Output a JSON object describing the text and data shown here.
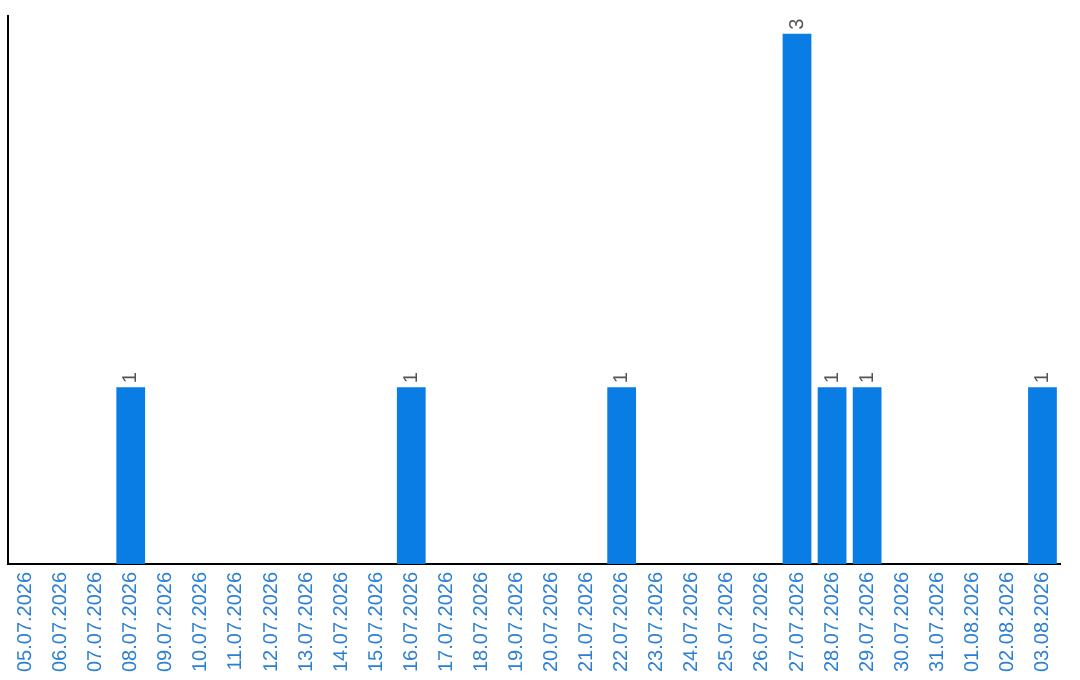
{
  "chart_data": {
    "type": "bar",
    "categories": [
      "05.07.2026",
      "06.07.2026",
      "07.07.2026",
      "08.07.2026",
      "09.07.2026",
      "10.07.2026",
      "11.07.2026",
      "12.07.2026",
      "13.07.2026",
      "14.07.2026",
      "15.07.2026",
      "16.07.2026",
      "17.07.2026",
      "18.07.2026",
      "19.07.2026",
      "20.07.2026",
      "21.07.2026",
      "22.07.2026",
      "23.07.2026",
      "24.07.2026",
      "25.07.2026",
      "26.07.2026",
      "27.07.2026",
      "28.07.2026",
      "29.07.2026",
      "30.07.2026",
      "31.07.2026",
      "01.08.2026",
      "02.08.2026",
      "03.08.2026"
    ],
    "values": [
      0,
      0,
      0,
      1,
      0,
      0,
      0,
      0,
      0,
      0,
      0,
      1,
      0,
      0,
      0,
      0,
      0,
      1,
      0,
      0,
      0,
      0,
      3,
      1,
      1,
      0,
      0,
      0,
      0,
      1
    ],
    "value_labels": [
      null,
      null,
      null,
      "1",
      null,
      null,
      null,
      null,
      null,
      null,
      null,
      "1",
      null,
      null,
      null,
      null,
      null,
      "1",
      null,
      null,
      null,
      null,
      "3",
      "1",
      "1",
      null,
      null,
      null,
      null,
      "1"
    ],
    "color": "#0a7de5",
    "ylim": [
      0,
      3.1
    ],
    "tick_labels": "x",
    "grid": false,
    "legend": false
  }
}
